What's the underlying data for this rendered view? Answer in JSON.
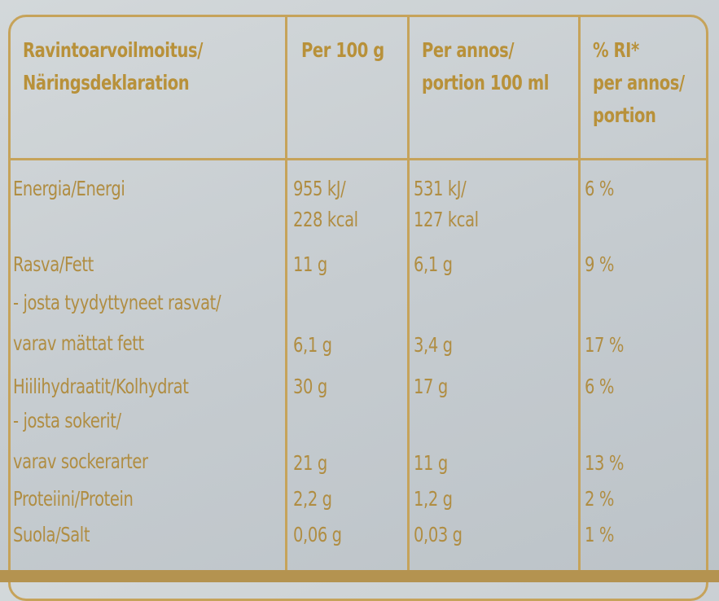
{
  "table": {
    "header": [
      [
        "Ravintoarvoilmoitus/",
        "Näringsdeklaration"
      ],
      [
        "Per 100 g"
      ],
      [
        "Per annos/",
        "portion 100 ml"
      ],
      [
        "% RI*",
        "per annos/",
        "portion"
      ]
    ],
    "rows": [
      {
        "label": [
          "Energia/Energi"
        ],
        "per100": [
          "955 kJ/",
          "228 kcal"
        ],
        "portion": [
          "531 kJ/",
          "127 kcal"
        ],
        "ri": [
          "6 %"
        ]
      },
      {
        "label": [
          "Rasva/Fett"
        ],
        "per100": [
          "11 g"
        ],
        "portion": [
          "6,1 g"
        ],
        "ri": [
          "9 %"
        ]
      },
      {
        "label": [
          "- josta tyydyttyneet rasvat/",
          "varav mättat fett"
        ],
        "per100": [
          "6,1 g"
        ],
        "portion": [
          "3,4 g"
        ],
        "ri": [
          "17 %"
        ]
      },
      {
        "label": [
          "Hiilihydraatit/Kolhydrat"
        ],
        "per100": [
          "30 g"
        ],
        "portion": [
          "17 g"
        ],
        "ri": [
          "6 %"
        ]
      },
      {
        "label": [
          "- josta sokerit/",
          "varav sockerarter"
        ],
        "per100": [
          "21 g"
        ],
        "portion": [
          "11 g"
        ],
        "ri": [
          "13 %"
        ]
      },
      {
        "label": [
          "Proteiini/Protein"
        ],
        "per100": [
          "2,2 g"
        ],
        "portion": [
          "1,2 g"
        ],
        "ri": [
          "2 %"
        ]
      },
      {
        "label": [
          "Suola/Salt"
        ],
        "per100": [
          "0,06 g"
        ],
        "portion": [
          "0,03 g"
        ],
        "ri": [
          "1 %"
        ]
      }
    ]
  }
}
